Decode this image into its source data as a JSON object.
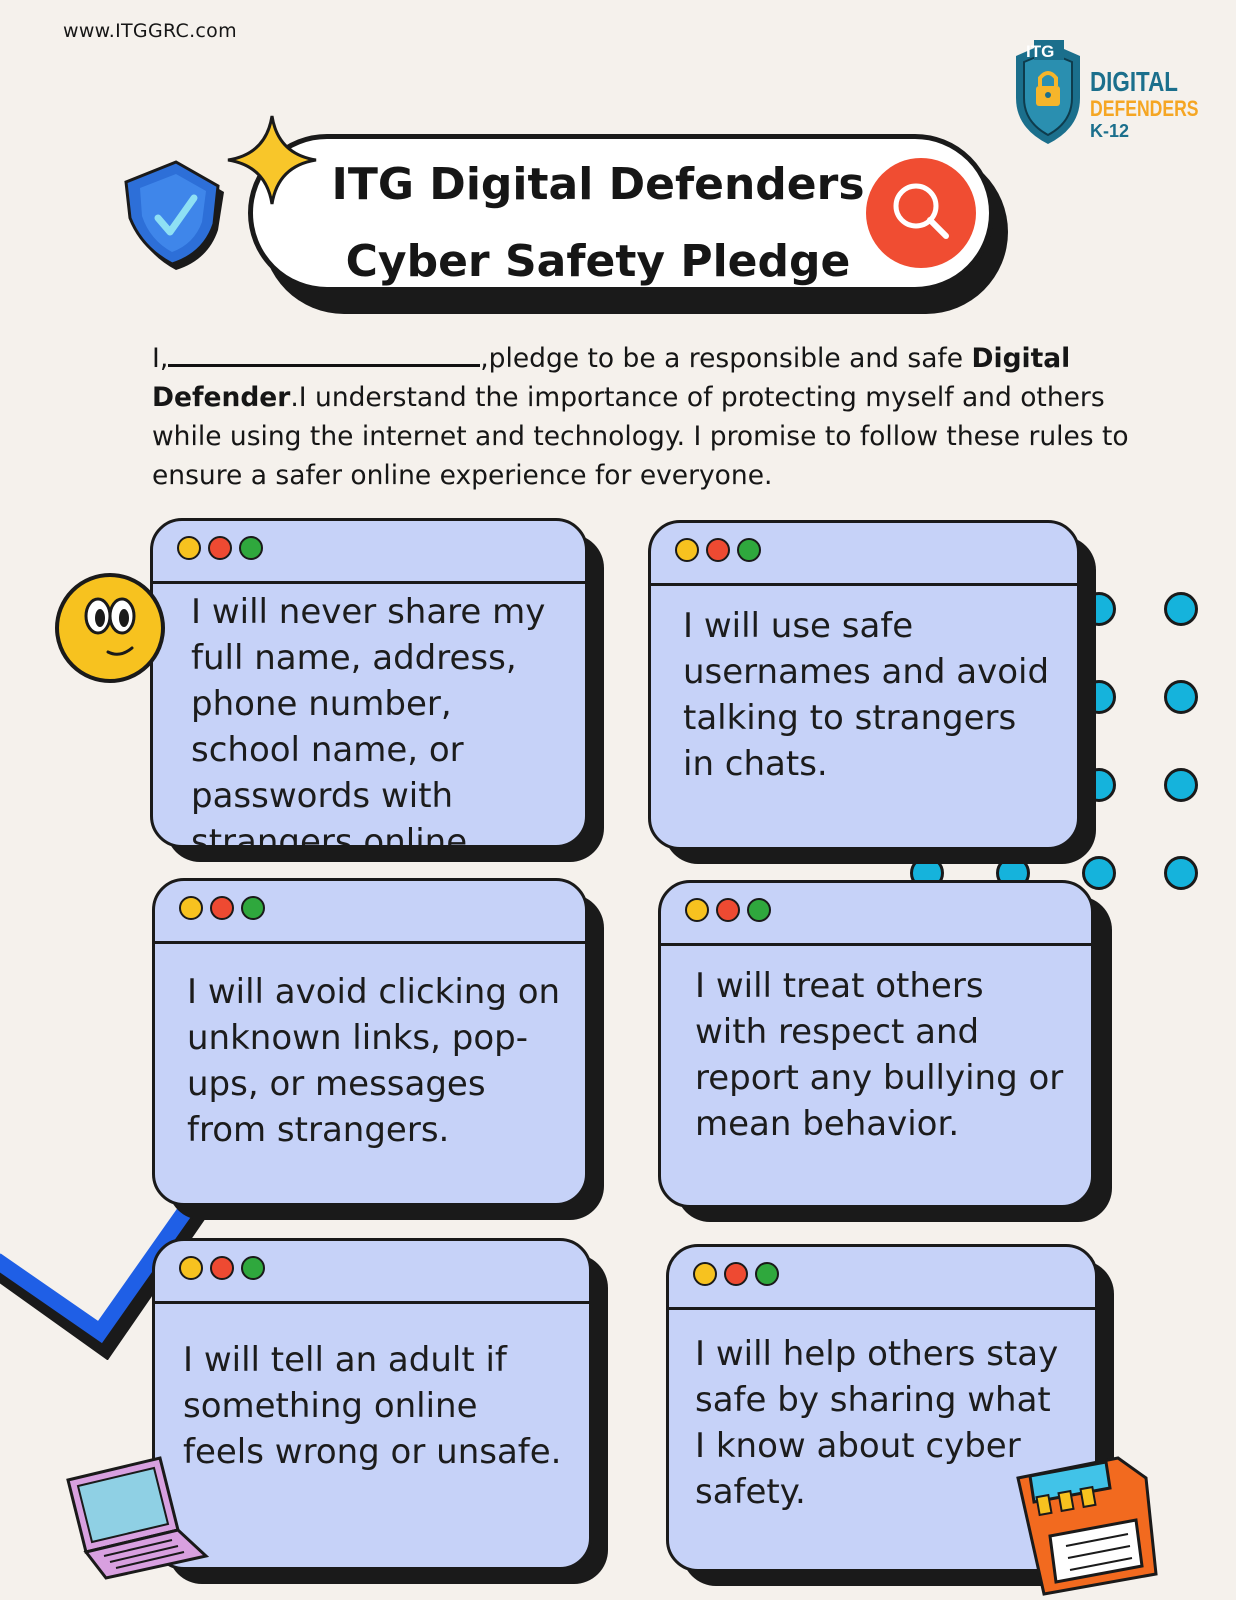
{
  "header": {
    "site_url": "www.ITGGRC.com",
    "logo": {
      "line1": "ITG",
      "line2": "DIGITAL",
      "line3": "DEFENDERS",
      "line4": "K-12"
    },
    "title_line1": "ITG Digital Defenders",
    "title_line2": "Cyber Safety Pledge"
  },
  "pledge": {
    "prefix": "I,",
    "after_blank": ",pledge to be a responsible and safe ",
    "bold_term": "Digital Defender",
    "rest": ".I understand the importance of protecting myself and others while using the internet and technology. I promise to follow these rules to ensure a safer online experience for everyone."
  },
  "cards": [
    {
      "text": "I will never share my full name, address, phone number, school name, or passwords with strangers online."
    },
    {
      "text": "I will use safe usernames and avoid talking to strangers in chats."
    },
    {
      "text": "I will avoid clicking on unknown links, pop-ups, or messages from strangers."
    },
    {
      "text": "I will treat others with respect and report any bullying or mean behavior."
    },
    {
      "text": "I will tell an adult if something online feels wrong or unsafe."
    },
    {
      "text": "I will help others stay safe by sharing what I know about cyber safety."
    }
  ],
  "icons": [
    "shield-check-icon",
    "sparkle-star-icon",
    "search-icon",
    "smiley-face-icon",
    "laptop-icon",
    "floppy-disk-icon",
    "padlock-icon"
  ],
  "colors": {
    "background": "#f5f1ec",
    "card": "#c6d2f8",
    "accent_red": "#f04d32",
    "accent_cyan": "#15b3dc",
    "accent_yellow": "#f7c21f",
    "line_blue": "#1f5fe6"
  }
}
